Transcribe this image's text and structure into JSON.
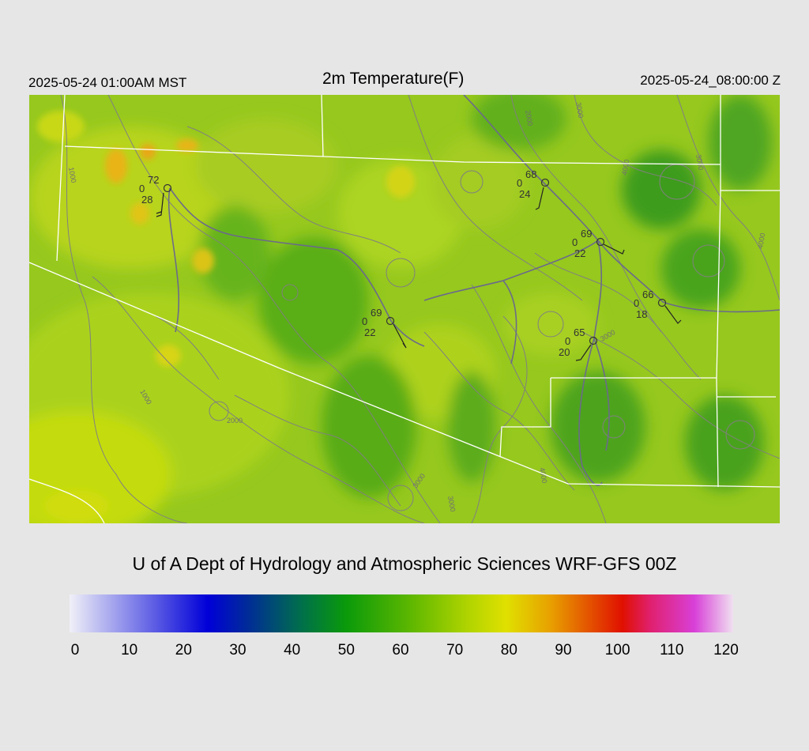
{
  "header": {
    "local_time": "2025-05-24 01:00AM MST",
    "title": "2m Temperature(F)",
    "utc_time": "2025-05-24_08:00:00 Z"
  },
  "credit": "U of A Dept of Hydrology and Atmospheric Sciences WRF-GFS 00Z",
  "colorbar": {
    "ticks": [
      "0",
      "10",
      "20",
      "30",
      "40",
      "50",
      "60",
      "70",
      "80",
      "90",
      "100",
      "110",
      "120"
    ],
    "range": [
      0,
      120
    ],
    "stops": [
      {
        "value": 0,
        "color": "#f0f0f8"
      },
      {
        "value": 25,
        "color": "#0000d8"
      },
      {
        "value": 32,
        "color": "#002a9a"
      },
      {
        "value": 42,
        "color": "#00704a"
      },
      {
        "value": 50,
        "color": "#0a9a0a"
      },
      {
        "value": 62,
        "color": "#60b800"
      },
      {
        "value": 72,
        "color": "#b0d400"
      },
      {
        "value": 79,
        "color": "#e0e000"
      },
      {
        "value": 87,
        "color": "#e8a000"
      },
      {
        "value": 100,
        "color": "#e01000"
      },
      {
        "value": 105,
        "color": "#e0206e"
      },
      {
        "value": 113,
        "color": "#d840d8"
      },
      {
        "value": 120,
        "color": "#f0e0f0"
      }
    ]
  },
  "contour_labels": [
    "2000",
    "3000",
    "4000",
    "1000",
    "3000",
    "4000",
    "1000",
    "2000",
    "3000",
    "3000",
    "4000",
    "3000"
  ],
  "stations": [
    {
      "temp": "72",
      "mid": "0",
      "dew": "28"
    },
    {
      "temp": "68",
      "mid": "0",
      "dew": "24"
    },
    {
      "temp": "69",
      "mid": "0",
      "dew": "22"
    },
    {
      "temp": "66",
      "mid": "0",
      "dew": "18"
    },
    {
      "temp": "69",
      "mid": "0",
      "dew": "22"
    },
    {
      "temp": "65",
      "mid": "0",
      "dew": "20"
    }
  ]
}
